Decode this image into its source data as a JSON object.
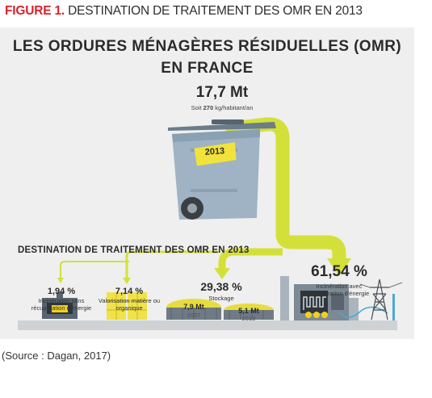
{
  "figure": {
    "number": "FIGURE 1.",
    "title": "DESTINATION DE TRAITEMENT DES OMR EN 2013"
  },
  "diagram": {
    "title_line1": "LES ORDURES MÉNAGÈRES RÉSIDUELLES (OMR)",
    "title_line2": "EN FRANCE",
    "total": "17,7 Mt",
    "total_sub_prefix": "Soit ",
    "total_sub_value": "270",
    "total_sub_suffix": " kg/habitant/an",
    "bin_label": "2013",
    "section_title": "DESTINATION DE TRAITEMENT DES OMR EN 2013",
    "destinations": [
      {
        "pct": "1,94 %",
        "label": "Incinération sans récupération d'énergie"
      },
      {
        "pct": "7,14 %",
        "label": "Valorisation matière ou organique"
      },
      {
        "pct": "29,38 %",
        "label": "Stockage"
      },
      {
        "pct": "61,54 %",
        "label": "Incinération avec récupération d'énergie"
      }
    ],
    "storage": [
      {
        "value": "7,9 Mt",
        "year": "2007"
      },
      {
        "value": "5,1 Mt",
        "year": "2013"
      }
    ],
    "colors": {
      "arrow": "#d4e03a",
      "bin": "#9fb3c4",
      "lid": "#6b7c8b",
      "ground": "#cfd2d4",
      "fire": "#f0d020"
    }
  },
  "source": "(Source : Dagan, 2017)"
}
